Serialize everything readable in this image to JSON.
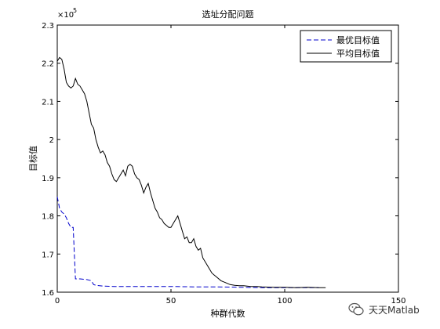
{
  "chart_data": {
    "type": "line",
    "title": "选址分配问题",
    "xlabel": "种群代数",
    "ylabel": "目标值",
    "xlim": [
      0,
      150
    ],
    "ylim": [
      1.6,
      2.3
    ],
    "y_multiplier_label": "×10",
    "y_multiplier_exponent": "5",
    "x_ticks": [
      "0",
      "50",
      "100",
      "150"
    ],
    "y_ticks": [
      "1.6",
      "1.7",
      "1.8",
      "1.9",
      "2",
      "2.1",
      "2.2",
      "2.3"
    ],
    "legend_position": "top-right",
    "grid": false,
    "series": [
      {
        "name": "最优目标值",
        "style": "dashed",
        "color": "#0000cc",
        "x": [
          0,
          1,
          2,
          3,
          4,
          5,
          6,
          7,
          8,
          9,
          10,
          13,
          15,
          16,
          17,
          20,
          25,
          30,
          40,
          50,
          60,
          70,
          80,
          90,
          100,
          110,
          115
        ],
        "y": [
          1.85,
          1.82,
          1.81,
          1.805,
          1.795,
          1.78,
          1.77,
          1.77,
          1.635,
          1.635,
          1.635,
          1.633,
          1.63,
          1.62,
          1.618,
          1.616,
          1.615,
          1.615,
          1.615,
          1.615,
          1.614,
          1.614,
          1.613,
          1.612,
          1.612,
          1.612,
          1.612
        ]
      },
      {
        "name": "平均目标值",
        "style": "solid",
        "color": "#000000",
        "x": [
          0,
          1,
          2,
          3,
          4,
          5,
          6,
          7,
          8,
          9,
          10,
          11,
          12,
          13,
          14,
          15,
          16,
          17,
          18,
          19,
          20,
          21,
          22,
          23,
          24,
          25,
          26,
          27,
          28,
          29,
          30,
          31,
          32,
          33,
          34,
          35,
          36,
          37,
          38,
          39,
          40,
          41,
          42,
          43,
          44,
          45,
          46,
          47,
          48,
          49,
          50,
          51,
          52,
          53,
          54,
          55,
          56,
          57,
          58,
          59,
          60,
          61,
          62,
          63,
          64,
          65,
          66,
          67,
          68,
          69,
          70,
          72,
          74,
          76,
          78,
          80,
          82,
          85,
          88,
          90,
          95,
          100,
          105,
          110,
          115,
          118
        ],
        "y": [
          2.205,
          2.215,
          2.21,
          2.185,
          2.15,
          2.14,
          2.135,
          2.14,
          2.16,
          2.145,
          2.14,
          2.13,
          2.12,
          2.1,
          2.07,
          2.04,
          2.03,
          2.0,
          1.98,
          1.965,
          1.97,
          1.96,
          1.94,
          1.93,
          1.91,
          1.895,
          1.89,
          1.9,
          1.91,
          1.92,
          1.905,
          1.93,
          1.935,
          1.93,
          1.91,
          1.9,
          1.895,
          1.88,
          1.86,
          1.875,
          1.885,
          1.86,
          1.84,
          1.82,
          1.81,
          1.795,
          1.79,
          1.78,
          1.775,
          1.77,
          1.77,
          1.78,
          1.79,
          1.8,
          1.78,
          1.76,
          1.74,
          1.745,
          1.73,
          1.73,
          1.74,
          1.72,
          1.71,
          1.715,
          1.69,
          1.68,
          1.67,
          1.66,
          1.65,
          1.645,
          1.64,
          1.63,
          1.625,
          1.62,
          1.618,
          1.617,
          1.617,
          1.615,
          1.615,
          1.614,
          1.613,
          1.613,
          1.612,
          1.613,
          1.612,
          1.612
        ]
      }
    ]
  },
  "watermark": {
    "text": "天天Matlab",
    "icon": "wechat-icon"
  }
}
